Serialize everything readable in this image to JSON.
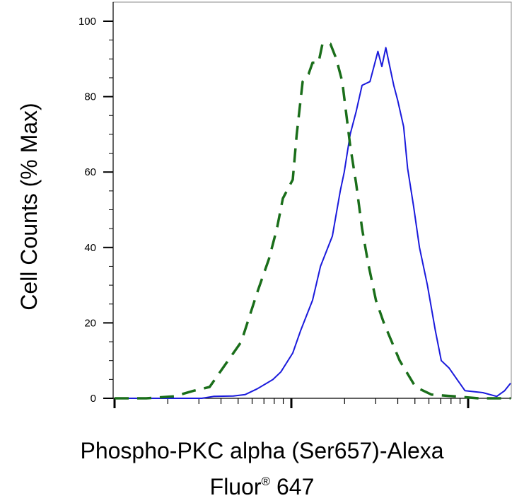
{
  "chart_data": {
    "type": "line",
    "ylabel": "Cell Counts (% Max)",
    "xlabel_line1": "Phospho-PKC alpha (Ser657)-Alexa",
    "xlabel_line2_main": "Fluor",
    "xlabel_line2_mark": "®",
    "xlabel_line2_tail": " 647",
    "ylim": [
      0,
      100
    ],
    "yticks": [
      0,
      20,
      40,
      60,
      80,
      100
    ],
    "ytick_labels": [
      "0",
      "20",
      "40",
      "60",
      "80",
      "100"
    ],
    "x_scale": "log",
    "x_tick_labels_shown": false,
    "grid": false,
    "series": [
      {
        "color": "#1a1adc",
        "style": "solid",
        "points": [
          [
            0.0,
            0
          ],
          [
            0.22,
            0
          ],
          [
            0.25,
            0.5
          ],
          [
            0.3,
            0.6
          ],
          [
            0.33,
            1
          ],
          [
            0.36,
            2.5
          ],
          [
            0.4,
            5
          ],
          [
            0.42,
            7
          ],
          [
            0.45,
            12
          ],
          [
            0.47,
            18
          ],
          [
            0.5,
            26
          ],
          [
            0.52,
            35
          ],
          [
            0.55,
            43
          ],
          [
            0.57,
            55
          ],
          [
            0.58,
            60
          ],
          [
            0.595,
            70
          ],
          [
            0.61,
            76
          ],
          [
            0.625,
            83
          ],
          [
            0.645,
            84
          ],
          [
            0.655,
            88
          ],
          [
            0.665,
            92
          ],
          [
            0.675,
            88
          ],
          [
            0.685,
            93
          ],
          [
            0.695,
            88
          ],
          [
            0.705,
            83
          ],
          [
            0.715,
            79
          ],
          [
            0.73,
            72
          ],
          [
            0.74,
            61
          ],
          [
            0.755,
            51
          ],
          [
            0.77,
            40
          ],
          [
            0.79,
            30
          ],
          [
            0.81,
            18
          ],
          [
            0.825,
            10
          ],
          [
            0.845,
            8
          ],
          [
            0.865,
            5
          ],
          [
            0.885,
            2
          ],
          [
            0.93,
            1.5
          ],
          [
            0.965,
            0.5
          ],
          [
            0.985,
            2
          ],
          [
            1.0,
            4
          ]
        ]
      },
      {
        "color": "#1a6e1a",
        "style": "dashed",
        "points": [
          [
            0.0,
            0
          ],
          [
            0.08,
            0
          ],
          [
            0.15,
            0.5
          ],
          [
            0.2,
            2
          ],
          [
            0.24,
            3
          ],
          [
            0.28,
            9
          ],
          [
            0.32,
            15
          ],
          [
            0.36,
            28
          ],
          [
            0.39,
            37
          ],
          [
            0.41,
            45
          ],
          [
            0.425,
            53
          ],
          [
            0.45,
            58
          ],
          [
            0.46,
            70
          ],
          [
            0.475,
            84
          ],
          [
            0.49,
            86
          ],
          [
            0.5,
            89
          ],
          [
            0.515,
            89
          ],
          [
            0.525,
            94
          ],
          [
            0.545,
            94
          ],
          [
            0.56,
            90
          ],
          [
            0.575,
            84
          ],
          [
            0.595,
            67
          ],
          [
            0.61,
            57
          ],
          [
            0.625,
            45
          ],
          [
            0.64,
            36
          ],
          [
            0.66,
            26
          ],
          [
            0.68,
            20
          ],
          [
            0.7,
            15
          ],
          [
            0.72,
            10
          ],
          [
            0.76,
            3
          ],
          [
            0.8,
            1
          ],
          [
            0.86,
            0.5
          ],
          [
            0.92,
            0
          ],
          [
            1.0,
            0
          ]
        ]
      }
    ]
  }
}
